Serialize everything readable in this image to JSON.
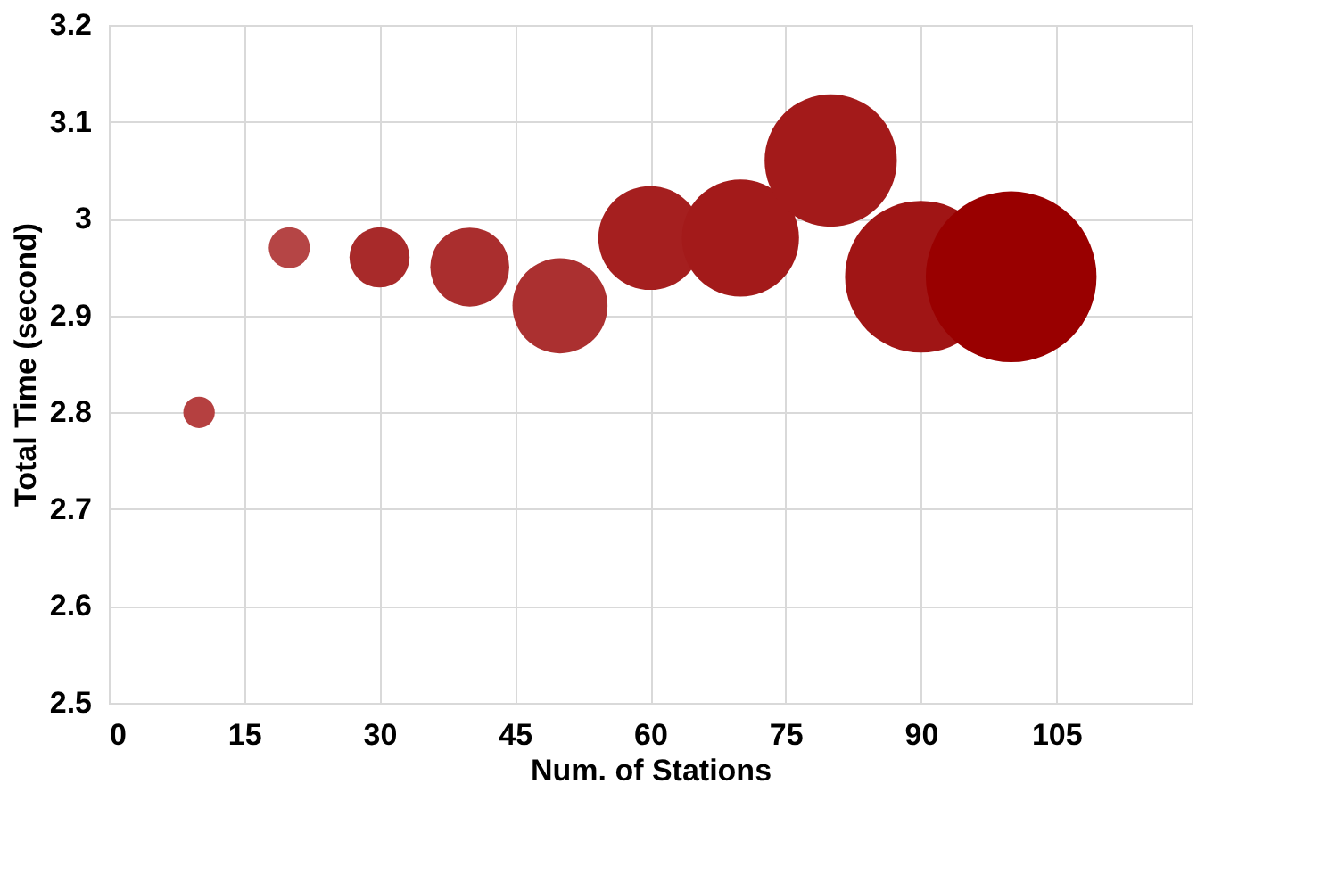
{
  "chart_data": {
    "type": "bubble",
    "xlabel": "Num. of Stations",
    "ylabel": "Total Time (second)",
    "x": [
      10,
      20,
      30,
      40,
      50,
      60,
      70,
      80,
      90,
      100
    ],
    "values": [
      2.8,
      2.97,
      2.96,
      2.95,
      2.91,
      2.98,
      2.98,
      3.06,
      2.94,
      2.94
    ],
    "sizes": [
      0.034,
      0.058,
      0.124,
      0.214,
      0.31,
      0.37,
      0.47,
      0.6,
      0.79,
      1
    ],
    "colors": [
      "#b54040",
      "#b54545",
      "#a82a2a",
      "#aa2e2e",
      "#ab3030",
      "#a51f1f",
      "#a31a1a",
      "#a31a1a",
      "#a01515",
      "#990000"
    ],
    "xlim": [
      0,
      120
    ],
    "xticks": [
      0,
      15,
      30,
      45,
      60,
      75,
      90,
      105
    ],
    "ylim": [
      2.5,
      3.2
    ],
    "yticks": [
      2.5,
      2.6,
      2.7,
      2.8,
      2.9,
      3,
      3.1,
      3.2
    ],
    "grid": true
  }
}
